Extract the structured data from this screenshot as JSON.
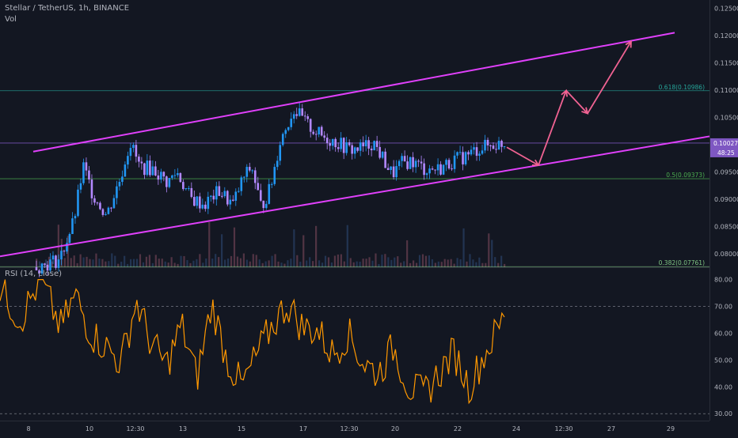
{
  "header": {
    "symbol_line": "Stellar / TetherUS, 1h, BINANCE",
    "volume_label": "Vol"
  },
  "rsi_header": {
    "label": "RSI (14, close)"
  },
  "price_axis": {
    "ticks": [
      {
        "value": 0.08,
        "label": "0.08000"
      },
      {
        "value": 0.085,
        "label": "0.08500"
      },
      {
        "value": 0.09,
        "label": "0.09000"
      },
      {
        "value": 0.095,
        "label": "0.09500"
      },
      {
        "value": 0.105,
        "label": "0.10500"
      },
      {
        "value": 0.11,
        "label": "0.11000"
      },
      {
        "value": 0.115,
        "label": "0.11500"
      },
      {
        "value": 0.12,
        "label": "0.12000"
      },
      {
        "value": 0.125,
        "label": "0.12500"
      }
    ],
    "current_price": {
      "value": 0.10027,
      "label": "0.10027",
      "countdown": "48:25"
    },
    "current_price_color": "#7e57c2"
  },
  "rsi_axis": {
    "ticks": [
      {
        "value": 30,
        "label": "30.00"
      },
      {
        "value": 40,
        "label": "40.00"
      },
      {
        "value": 50,
        "label": "50.00"
      },
      {
        "value": 60,
        "label": "60.00"
      },
      {
        "value": 70,
        "label": "70.00"
      },
      {
        "value": 80,
        "label": "80.00"
      }
    ],
    "band_upper": 70,
    "band_lower": 30
  },
  "time_axis": {
    "ticks": [
      "8",
      "10",
      "12:30",
      "13",
      "15",
      "17",
      "12:30",
      "20",
      "22",
      "24",
      "12:30",
      "27",
      "29"
    ]
  },
  "fib_levels": [
    {
      "label": "0.618(0.10986)",
      "value": 0.10986,
      "color": "#26a69a"
    },
    {
      "label": "0.5(0.09373)",
      "value": 0.09373,
      "color": "#4caf50"
    },
    {
      "label": "0.382(0.07761)",
      "value": 0.07761,
      "color": "#81c784"
    }
  ],
  "colors": {
    "background": "#131722",
    "channel": "#e040fb",
    "arrows": "#f06292",
    "rsi_line": "#ff9800",
    "candles_up": "#2196f3",
    "candles_down": "#b388ff",
    "volume": "#5d3a4a"
  },
  "chart_data": {
    "type": "candlestick",
    "title": "Stellar / TetherUS, 1h, BINANCE",
    "price_range": [
      0.0775,
      0.1265
    ],
    "rsi_range": [
      28,
      84
    ],
    "price_path": [
      [
        0,
        0.0775
      ],
      [
        0.05,
        0.079
      ],
      [
        0.08,
        0.086
      ],
      [
        0.1,
        0.096
      ],
      [
        0.12,
        0.091
      ],
      [
        0.15,
        0.087
      ],
      [
        0.18,
        0.094
      ],
      [
        0.2,
        0.1005
      ],
      [
        0.22,
        0.096
      ],
      [
        0.25,
        0.0955
      ],
      [
        0.28,
        0.093
      ],
      [
        0.3,
        0.095
      ],
      [
        0.33,
        0.09
      ],
      [
        0.36,
        0.089
      ],
      [
        0.39,
        0.0915
      ],
      [
        0.42,
        0.089
      ],
      [
        0.44,
        0.0935
      ],
      [
        0.46,
        0.096
      ],
      [
        0.48,
        0.0885
      ],
      [
        0.5,
        0.092
      ],
      [
        0.52,
        0.1005
      ],
      [
        0.55,
        0.1065
      ],
      [
        0.58,
        0.1035
      ],
      [
        0.61,
        0.1015
      ],
      [
        0.64,
        0.1005
      ],
      [
        0.67,
        0.099
      ],
      [
        0.7,
        0.0995
      ],
      [
        0.72,
        0.1005
      ],
      [
        0.74,
        0.0975
      ],
      [
        0.76,
        0.0945
      ],
      [
        0.78,
        0.0965
      ],
      [
        0.8,
        0.097
      ],
      [
        0.83,
        0.0955
      ],
      [
        0.86,
        0.0955
      ],
      [
        0.89,
        0.097
      ],
      [
        0.92,
        0.098
      ],
      [
        0.95,
        0.0995
      ],
      [
        1.0,
        0.1003
      ]
    ],
    "rsi_path": [
      [
        0,
        77
      ],
      [
        0.04,
        65
      ],
      [
        0.08,
        80
      ],
      [
        0.12,
        62
      ],
      [
        0.15,
        74
      ],
      [
        0.18,
        60
      ],
      [
        0.21,
        55
      ],
      [
        0.24,
        49
      ],
      [
        0.27,
        72
      ],
      [
        0.3,
        56
      ],
      [
        0.33,
        48
      ],
      [
        0.36,
        63
      ],
      [
        0.39,
        43
      ],
      [
        0.42,
        71
      ],
      [
        0.45,
        50
      ],
      [
        0.48,
        40
      ],
      [
        0.51,
        52
      ],
      [
        0.54,
        63
      ],
      [
        0.57,
        71
      ],
      [
        0.6,
        62
      ],
      [
        0.63,
        61
      ],
      [
        0.66,
        52
      ],
      [
        0.69,
        60
      ],
      [
        0.72,
        49
      ],
      [
        0.75,
        45
      ],
      [
        0.78,
        55
      ],
      [
        0.81,
        40
      ],
      [
        0.84,
        37
      ],
      [
        0.87,
        45
      ],
      [
        0.9,
        53
      ],
      [
        0.93,
        40
      ],
      [
        0.96,
        52
      ],
      [
        1.0,
        66
      ]
    ],
    "rsi_last": 66
  }
}
